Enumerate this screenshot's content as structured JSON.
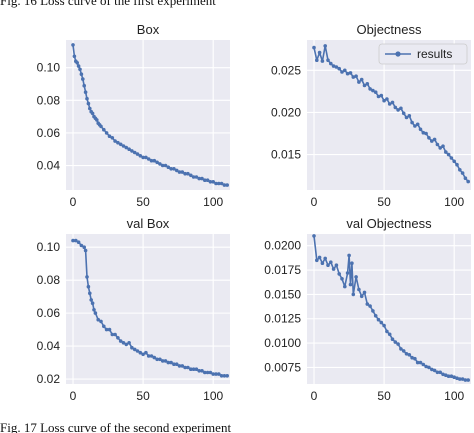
{
  "captions": {
    "top": "Fig. 16 Loss curve of the first experiment",
    "bottom": "Fig. 17 Loss curve of the second experiment"
  },
  "colors": {
    "panel_background": "#eaeaf2",
    "grid": "#ffffff",
    "line": "#4c72b0",
    "text": "#222222"
  },
  "chart_data": [
    {
      "type": "line",
      "title": "Box",
      "grid": true,
      "xlim": [
        -5,
        112
      ],
      "ylim": [
        0.025,
        0.117
      ],
      "xticks": [
        "0",
        "50",
        "100"
      ],
      "yticks": [
        "0.04",
        "0.06",
        "0.08",
        "0.10"
      ],
      "series": [
        {
          "x": [
            0,
            1,
            2,
            3,
            4,
            5,
            6,
            7,
            8,
            9,
            10,
            11,
            12,
            13,
            14,
            15,
            16,
            17,
            18,
            19,
            20,
            22,
            24,
            26,
            28,
            30,
            32,
            34,
            36,
            38,
            40,
            42,
            44,
            46,
            48,
            50,
            52,
            54,
            56,
            58,
            60,
            62,
            64,
            66,
            68,
            70,
            72,
            74,
            76,
            78,
            80,
            82,
            84,
            86,
            88,
            90,
            92,
            94,
            96,
            98,
            100,
            102,
            104,
            106,
            108,
            110
          ],
          "values": [
            0.114,
            0.107,
            0.104,
            0.103,
            0.101,
            0.099,
            0.096,
            0.093,
            0.089,
            0.085,
            0.081,
            0.078,
            0.075,
            0.073,
            0.072,
            0.07,
            0.069,
            0.068,
            0.066,
            0.065,
            0.064,
            0.062,
            0.06,
            0.058,
            0.057,
            0.055,
            0.054,
            0.053,
            0.052,
            0.051,
            0.05,
            0.049,
            0.048,
            0.047,
            0.046,
            0.045,
            0.045,
            0.044,
            0.043,
            0.043,
            0.042,
            0.041,
            0.04,
            0.04,
            0.039,
            0.038,
            0.038,
            0.037,
            0.036,
            0.036,
            0.035,
            0.035,
            0.034,
            0.033,
            0.033,
            0.032,
            0.032,
            0.031,
            0.031,
            0.03,
            0.03,
            0.029,
            0.029,
            0.029,
            0.028,
            0.028
          ]
        }
      ]
    },
    {
      "type": "line",
      "title": "Objectness",
      "grid": true,
      "legend": "top-right",
      "xlim": [
        -5,
        112
      ],
      "ylim": [
        0.0108,
        0.0286
      ],
      "xticks": [
        "0",
        "50",
        "100"
      ],
      "yticks": [
        "0.015",
        "0.020",
        "0.025"
      ],
      "series": [
        {
          "name": "results",
          "x": [
            0,
            2,
            4,
            6,
            8,
            10,
            12,
            14,
            16,
            18,
            20,
            22,
            24,
            26,
            28,
            30,
            32,
            34,
            36,
            38,
            40,
            42,
            44,
            46,
            48,
            50,
            52,
            54,
            56,
            58,
            60,
            62,
            64,
            66,
            68,
            70,
            72,
            74,
            76,
            78,
            80,
            82,
            84,
            86,
            88,
            90,
            92,
            94,
            96,
            98,
            100,
            102,
            104,
            106,
            108,
            110
          ],
          "values": [
            0.0277,
            0.0262,
            0.0271,
            0.0261,
            0.0279,
            0.0262,
            0.0258,
            0.0255,
            0.0254,
            0.0252,
            0.0248,
            0.025,
            0.0246,
            0.0247,
            0.0242,
            0.0243,
            0.0236,
            0.0239,
            0.0232,
            0.0234,
            0.0228,
            0.0226,
            0.0224,
            0.0219,
            0.022,
            0.0214,
            0.0216,
            0.021,
            0.0212,
            0.0206,
            0.0203,
            0.0205,
            0.0199,
            0.0194,
            0.0196,
            0.0188,
            0.0184,
            0.0186,
            0.018,
            0.0176,
            0.0175,
            0.017,
            0.0166,
            0.0168,
            0.0162,
            0.0158,
            0.016,
            0.0153,
            0.015,
            0.0146,
            0.0142,
            0.0138,
            0.0132,
            0.0128,
            0.0122,
            0.0118
          ]
        }
      ]
    },
    {
      "type": "line",
      "title": "val Box",
      "grid": true,
      "xlim": [
        -5,
        112
      ],
      "ylim": [
        0.017,
        0.108
      ],
      "xticks": [
        "0",
        "50",
        "100"
      ],
      "yticks": [
        "0.02",
        "0.04",
        "0.06",
        "0.08",
        "0.10"
      ],
      "series": [
        {
          "x": [
            0,
            2,
            4,
            6,
            8,
            9,
            10,
            11,
            12,
            13,
            14,
            15,
            16,
            18,
            20,
            22,
            24,
            26,
            28,
            30,
            32,
            34,
            36,
            38,
            40,
            42,
            44,
            46,
            48,
            50,
            52,
            54,
            56,
            58,
            60,
            62,
            64,
            66,
            68,
            70,
            72,
            74,
            76,
            78,
            80,
            82,
            84,
            86,
            88,
            90,
            92,
            94,
            96,
            98,
            100,
            102,
            104,
            106,
            108,
            110
          ],
          "values": [
            0.104,
            0.104,
            0.103,
            0.101,
            0.1,
            0.098,
            0.082,
            0.076,
            0.072,
            0.068,
            0.066,
            0.062,
            0.06,
            0.056,
            0.055,
            0.052,
            0.05,
            0.05,
            0.047,
            0.047,
            0.045,
            0.043,
            0.042,
            0.041,
            0.042,
            0.039,
            0.038,
            0.037,
            0.036,
            0.035,
            0.036,
            0.034,
            0.034,
            0.033,
            0.032,
            0.032,
            0.031,
            0.031,
            0.03,
            0.03,
            0.029,
            0.029,
            0.028,
            0.028,
            0.027,
            0.027,
            0.026,
            0.026,
            0.026,
            0.025,
            0.025,
            0.024,
            0.024,
            0.024,
            0.023,
            0.023,
            0.023,
            0.022,
            0.022,
            0.022
          ]
        }
      ]
    },
    {
      "type": "line",
      "title": "val Objectness",
      "grid": true,
      "xlim": [
        -5,
        112
      ],
      "ylim": [
        0.0058,
        0.0212
      ],
      "xticks": [
        "0",
        "50",
        "100"
      ],
      "yticks": [
        "0.0075",
        "0.0100",
        "0.0125",
        "0.0150",
        "0.0175",
        "0.0200"
      ],
      "series": [
        {
          "x": [
            0,
            2,
            4,
            6,
            8,
            10,
            12,
            14,
            16,
            18,
            20,
            22,
            24,
            25,
            26,
            27,
            28,
            30,
            32,
            34,
            36,
            38,
            40,
            42,
            44,
            46,
            48,
            50,
            52,
            54,
            56,
            58,
            60,
            62,
            64,
            66,
            68,
            70,
            72,
            74,
            76,
            78,
            80,
            82,
            84,
            86,
            88,
            90,
            92,
            94,
            96,
            98,
            100,
            102,
            104,
            106,
            108,
            110
          ],
          "values": [
            0.021,
            0.0185,
            0.0188,
            0.0182,
            0.0187,
            0.018,
            0.0183,
            0.0176,
            0.018,
            0.0171,
            0.0166,
            0.0158,
            0.0172,
            0.019,
            0.016,
            0.0182,
            0.015,
            0.0168,
            0.0155,
            0.0148,
            0.0152,
            0.014,
            0.0138,
            0.0133,
            0.0128,
            0.0124,
            0.0121,
            0.0118,
            0.0112,
            0.0109,
            0.0104,
            0.0101,
            0.0099,
            0.0094,
            0.0092,
            0.0089,
            0.0088,
            0.0085,
            0.0084,
            0.008,
            0.008,
            0.0078,
            0.0076,
            0.0075,
            0.0073,
            0.0072,
            0.007,
            0.007,
            0.0068,
            0.0067,
            0.0066,
            0.0066,
            0.0065,
            0.0064,
            0.0063,
            0.0063,
            0.0062,
            0.0062
          ]
        }
      ]
    }
  ]
}
